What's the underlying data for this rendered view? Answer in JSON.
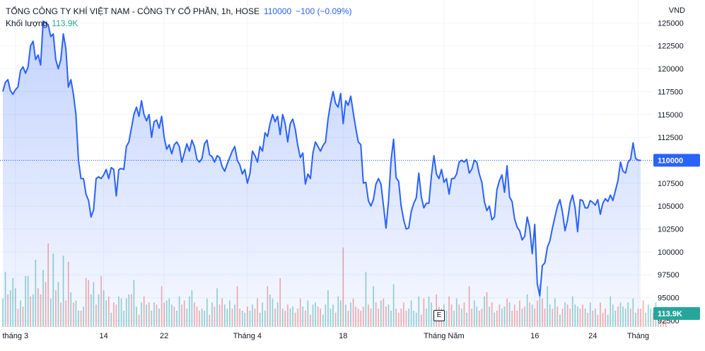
{
  "legend": {
    "title": "TỔNG CÔNG TY KHÍ VIỆT NAM - CÔNG TY CỔ PHẦN, 1h, HOSE",
    "price": "110000",
    "change": "−100 (−0.09%)",
    "volume_label": "Khối lượng",
    "volume_value": "113.9K"
  },
  "axis_unit": "VND",
  "event_marker": "E",
  "colors": {
    "line": "#2962ff",
    "area": "#2962ff",
    "vol_up": "#26a69a",
    "vol_down": "#ef5350",
    "grid": "#f0f3fa",
    "last_price_bg": "#2962ff",
    "volume_badge_bg": "#26a69a"
  },
  "chart_data": {
    "type": "area",
    "grid": true,
    "y_ticks": [
      92500,
      95000,
      97500,
      100000,
      102500,
      105000,
      107500,
      110000,
      112500,
      115000,
      117500,
      120000,
      122500,
      125000
    ],
    "ylim": [
      91800,
      127500
    ],
    "x_ticks": [
      "tháng 3",
      "14",
      "22",
      "Tháng 4",
      "18",
      "Tháng Năm",
      "16",
      "24",
      "Tháng"
    ],
    "x_tick_index": [
      5,
      40,
      64,
      97,
      135,
      175,
      211,
      234,
      252
    ],
    "last_price": 110000,
    "last_price_label": "110000",
    "volume_badge": "113.9K",
    "series": [
      {
        "values": [
          117500,
          118500,
          118800,
          117600,
          117200,
          117700,
          118000,
          119800,
          120200,
          119500,
          120200,
          122500,
          123000,
          121000,
          121500,
          120400,
          125200,
          125000,
          124800,
          123500,
          123800,
          121000,
          120000,
          121000,
          123800,
          122200,
          118000,
          118800,
          117200,
          115000,
          110000,
          108000,
          108000,
          106300,
          105600,
          103800,
          104600,
          108000,
          108200,
          108000,
          108400,
          109000,
          108000,
          109200,
          109000,
          106100,
          109000,
          109100,
          109000,
          111500,
          112000,
          113500,
          115000,
          115800,
          114800,
          116500,
          115000,
          114300,
          115000,
          112500,
          114200,
          114400,
          113500,
          114800,
          112500,
          111200,
          111700,
          110700,
          111700,
          112000,
          111500,
          109800,
          110800,
          111800,
          111000,
          112200,
          111500,
          110100,
          109800,
          110200,
          111800,
          112200,
          110600,
          110400,
          109800,
          110500,
          110300,
          109300,
          108800,
          109600,
          110300,
          111000,
          111500,
          110000,
          109500,
          108500,
          109000,
          107500,
          108500,
          111000,
          110500,
          109800,
          111500,
          111000,
          113000,
          112600,
          114000,
          115000,
          114200,
          114800,
          112800,
          115000,
          114000,
          112000,
          114000,
          114500,
          113400,
          111600,
          110300,
          110800,
          107400,
          108500,
          108000,
          110800,
          112000,
          111500,
          111000,
          111600,
          112000,
          114500,
          116200,
          117500,
          116200,
          115800,
          117300,
          114000,
          116500,
          116000,
          117000,
          115200,
          113500,
          112000,
          111700,
          107500,
          107600,
          105600,
          105000,
          105700,
          107400,
          108000,
          107400,
          105000,
          102600,
          105600,
          110000,
          112300,
          108100,
          107700,
          105000,
          103500,
          102500,
          102600,
          104400,
          105300,
          105900,
          108600,
          106000,
          104800,
          105300,
          105300,
          108300,
          110500,
          108500,
          108000,
          109000,
          107600,
          108000,
          106300,
          108000,
          108000,
          108500,
          109800,
          110000,
          109800,
          110100,
          108600,
          109000,
          110000,
          109800,
          108500,
          107600,
          105500,
          104500,
          105000,
          103500,
          103800,
          106800,
          107800,
          108400,
          106500,
          109400,
          106000,
          105500,
          103600,
          102700,
          102300,
          101300,
          101700,
          103800,
          102600,
          99800,
          103000,
          96500,
          95200,
          98500,
          98800,
          100500,
          101200,
          102600,
          103800,
          105000,
          105700,
          104300,
          102300,
          103500,
          105300,
          106200,
          104800,
          102200,
          105700,
          105600,
          104800,
          104800,
          105600,
          105400,
          105100,
          105700,
          104100,
          105300,
          105800,
          105500,
          106200,
          105600,
          106700,
          107800,
          109800,
          108800,
          108600,
          109800,
          110100,
          111900,
          110200,
          110000,
          110000
        ]
      }
    ],
    "volume": {
      "values": [
        14,
        27,
        16,
        18,
        24,
        19,
        9,
        13,
        10,
        25,
        25,
        15,
        16,
        33,
        19,
        16,
        28,
        22,
        41,
        14,
        36,
        18,
        22,
        12,
        35,
        13,
        32,
        17,
        12,
        13,
        8,
        8,
        10,
        24,
        23,
        16,
        22,
        11,
        16,
        25,
        18,
        13,
        15,
        7,
        12,
        11,
        15,
        14,
        8,
        14,
        16,
        16,
        23,
        10,
        6,
        12,
        15,
        11,
        12,
        8,
        12,
        11,
        9,
        20,
        12,
        13,
        14,
        11,
        10,
        8,
        15,
        11,
        13,
        9,
        15,
        18,
        12,
        10,
        8,
        9,
        8,
        14,
        6,
        12,
        10,
        19,
        11,
        14,
        11,
        9,
        13,
        9,
        11,
        20,
        9,
        8,
        7,
        10,
        8,
        11,
        9,
        14,
        7,
        12,
        8,
        20,
        16,
        14,
        9,
        12,
        24,
        9,
        8,
        11,
        9,
        10,
        7,
        9,
        14,
        10,
        8,
        13,
        6,
        11,
        12,
        10,
        9,
        6,
        11,
        18,
        9,
        11,
        7,
        15,
        13,
        39,
        11,
        8,
        12,
        14,
        10,
        9,
        8,
        10,
        27,
        11,
        9,
        20,
        12,
        9,
        13,
        14,
        10,
        11,
        8,
        21,
        9,
        7,
        9,
        12,
        8,
        9,
        13,
        8,
        7,
        15,
        6,
        14,
        9,
        15,
        12,
        7,
        16,
        10,
        9,
        11,
        8,
        15,
        11,
        8,
        14,
        11,
        9,
        12,
        7,
        20,
        9,
        13,
        10,
        8,
        9,
        15,
        17,
        10,
        12,
        7,
        8,
        11,
        9,
        10,
        14,
        12,
        8,
        11,
        8,
        13,
        9,
        10,
        16,
        12,
        11,
        9,
        13,
        21,
        14,
        9,
        20,
        11,
        9,
        14,
        10,
        6,
        9,
        12,
        11,
        9,
        15,
        11,
        10,
        9,
        11,
        9,
        7,
        12,
        8,
        9,
        6,
        12,
        7,
        9,
        6,
        15,
        11,
        8,
        10,
        12,
        10,
        9,
        12,
        9,
        14,
        7,
        9,
        9,
        13,
        7,
        11,
        9,
        7,
        12,
        9,
        8,
        9,
        10
      ],
      "up": [
        1,
        1,
        0,
        1,
        1,
        1,
        0,
        1,
        0,
        1,
        1,
        0,
        1,
        1,
        0,
        0,
        1,
        0,
        0,
        1,
        1,
        0,
        1,
        0,
        1,
        0,
        0,
        1,
        0,
        1,
        1,
        0,
        1,
        0,
        0,
        1,
        1,
        0,
        1,
        0,
        1,
        1,
        0,
        1,
        0,
        0,
        1,
        1,
        1,
        1,
        1,
        0,
        1,
        1,
        0,
        1,
        0,
        1,
        0,
        1,
        1,
        0,
        1,
        0,
        0,
        1,
        1,
        1,
        0,
        1,
        1,
        0,
        0,
        1,
        1,
        1,
        0,
        0,
        0,
        1,
        1,
        1,
        0,
        1,
        0,
        1,
        0,
        0,
        1,
        1,
        1,
        0,
        1,
        0,
        0,
        1,
        1,
        0,
        1,
        1,
        0,
        0,
        1,
        1,
        1,
        0,
        1,
        1,
        0,
        1,
        0,
        1,
        0,
        0,
        1,
        1,
        0,
        0,
        0,
        1,
        0,
        1,
        0,
        1,
        1,
        0,
        0,
        1,
        1,
        1,
        1,
        1,
        0,
        1,
        1,
        0,
        1,
        0,
        1,
        0,
        0,
        0,
        0,
        0,
        1,
        0,
        0,
        1,
        0,
        0,
        1,
        0,
        0,
        1,
        1,
        1,
        0,
        0,
        0,
        0,
        0,
        1,
        1,
        1,
        1,
        1,
        0,
        0,
        1,
        1,
        1,
        1,
        0,
        0,
        0,
        1,
        1,
        0,
        0,
        1,
        1,
        0,
        1,
        0,
        1,
        0,
        0,
        1,
        1,
        0,
        0,
        1,
        0,
        1,
        0,
        1,
        0,
        0,
        1,
        1,
        0,
        1,
        0,
        0,
        0,
        0,
        1,
        0,
        1,
        0,
        1,
        0,
        0,
        1,
        0,
        0,
        1,
        1,
        0,
        1,
        0,
        1,
        0,
        1,
        0,
        0,
        1,
        1,
        1,
        0,
        0,
        1,
        0,
        1,
        0,
        1,
        0,
        0,
        0,
        0,
        1,
        1,
        1,
        1,
        0,
        1,
        1,
        1,
        1,
        0,
        1,
        1,
        0,
        0,
        0,
        1,
        1,
        1,
        0,
        1,
        1,
        0
      ]
    }
  }
}
